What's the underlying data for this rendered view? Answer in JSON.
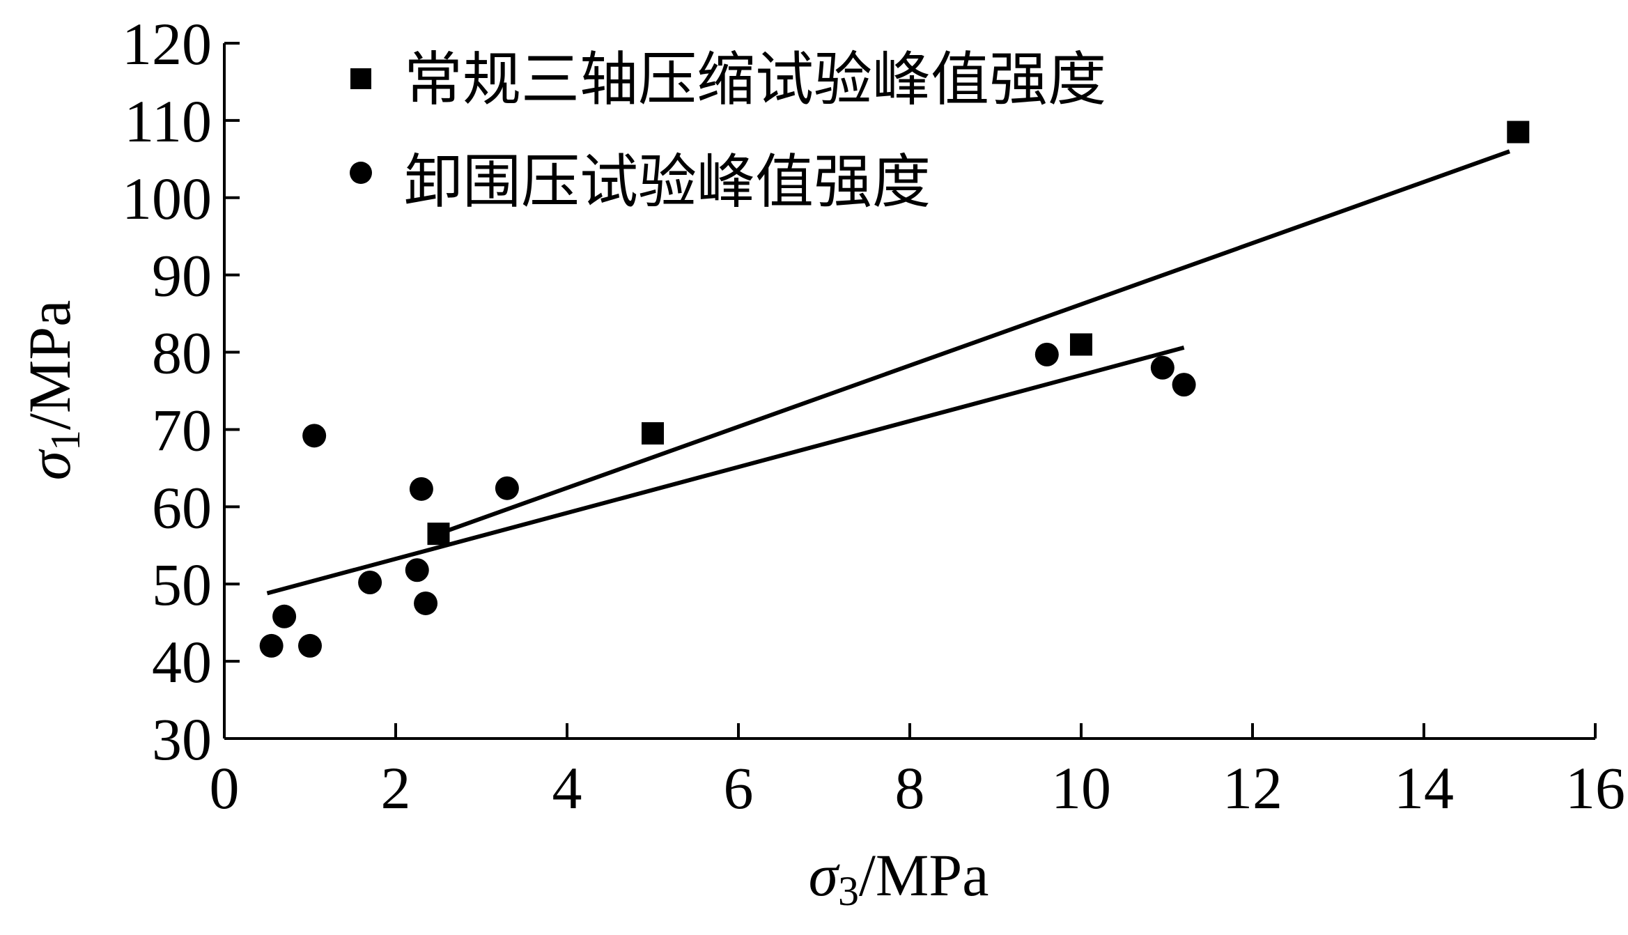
{
  "chart_data": {
    "type": "scatter",
    "xlabel": {
      "symbol": "σ",
      "sub": "3",
      "unit": "/MPa"
    },
    "ylabel": {
      "symbol": "σ",
      "sub": "1",
      "unit": "/MPa"
    },
    "xlim": [
      0,
      16
    ],
    "ylim": [
      30,
      120
    ],
    "xticks": [
      "0",
      "2",
      "4",
      "6",
      "8",
      "10",
      "12",
      "14",
      "16"
    ],
    "yticks": [
      "30",
      "40",
      "50",
      "60",
      "70",
      "80",
      "90",
      "100",
      "110",
      "120"
    ],
    "grid": false,
    "legend_position": "top-left",
    "series": [
      {
        "name": "常规三轴压缩试验峰值强度",
        "marker": "square",
        "points": [
          [
            2.5,
            56.5
          ],
          [
            5.0,
            69.5
          ],
          [
            10.0,
            81.0
          ],
          [
            15.1,
            108.5
          ]
        ],
        "fit": [
          [
            2.5,
            56.5
          ],
          [
            15.0,
            106.0
          ]
        ]
      },
      {
        "name": "卸围压试验峰值强度",
        "marker": "circle",
        "points": [
          [
            0.55,
            42.0
          ],
          [
            0.7,
            45.8
          ],
          [
            1.0,
            42.0
          ],
          [
            1.05,
            69.2
          ],
          [
            1.7,
            50.2
          ],
          [
            2.25,
            51.8
          ],
          [
            2.3,
            62.3
          ],
          [
            2.35,
            47.5
          ],
          [
            3.3,
            62.4
          ],
          [
            9.6,
            79.7
          ],
          [
            10.95,
            78.0
          ],
          [
            11.2,
            75.8
          ]
        ],
        "fit": [
          [
            0.5,
            48.8
          ],
          [
            11.2,
            80.6
          ]
        ]
      }
    ],
    "colors": {
      "ink": "#000000",
      "background": "#ffffff"
    }
  }
}
